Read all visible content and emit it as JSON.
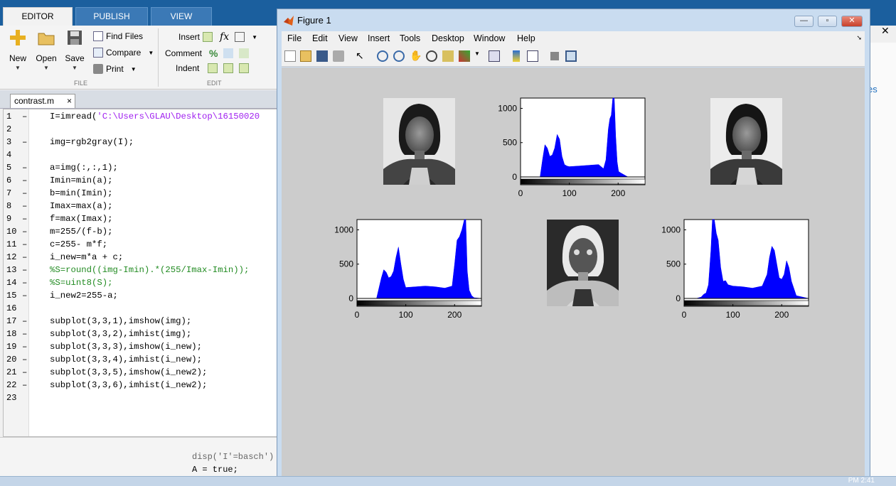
{
  "ribbon": {
    "tabs": [
      "EDITOR",
      "PUBLISH",
      "VIEW"
    ],
    "file": {
      "new": "New",
      "open": "Open",
      "save": "Save",
      "find_files": "Find Files",
      "compare": "Compare",
      "print": "Print",
      "section": "FILE"
    },
    "edit": {
      "insert": "Insert",
      "comment": "Comment",
      "indent": "Indent",
      "fx": "fx",
      "percent": "%",
      "section": "EDIT"
    }
  },
  "editor": {
    "file_tab": "contrast.m",
    "close": "×",
    "lines": [
      {
        "n": "1",
        "text": "I=imread(",
        "str": "'C:\\Users\\GLAU\\Desktop\\16150020",
        "rest": "",
        "type": "code"
      },
      {
        "n": "2",
        "text": "",
        "type": "code"
      },
      {
        "n": "3",
        "text": "img=rgb2gray(I);",
        "type": "code"
      },
      {
        "n": "4",
        "text": "",
        "type": "code"
      },
      {
        "n": "5",
        "text": "a=img(:,:,1);",
        "type": "code"
      },
      {
        "n": "6",
        "text": "Imin=min(a);",
        "type": "code"
      },
      {
        "n": "7",
        "text": "b=min(Imin);",
        "type": "code"
      },
      {
        "n": "8",
        "text": "Imax=max(a);",
        "type": "code"
      },
      {
        "n": "9",
        "text": "f=max(Imax);",
        "type": "code"
      },
      {
        "n": "10",
        "text": "m=255/(f-b);",
        "type": "code"
      },
      {
        "n": "11",
        "text": "c=255- m*f;",
        "type": "code"
      },
      {
        "n": "12",
        "text": "i_new=m*a + c;",
        "type": "code"
      },
      {
        "n": "13",
        "text": "%S=round((img-Imin).*(255/Imax-Imin));",
        "type": "comment"
      },
      {
        "n": "14",
        "text": "%S=uint8(S);",
        "type": "comment"
      },
      {
        "n": "15",
        "text": "i_new2=255-a;",
        "type": "code"
      },
      {
        "n": "16",
        "text": "",
        "type": "code"
      },
      {
        "n": "17",
        "text": "subplot(3,3,1),imshow(img);",
        "type": "code"
      },
      {
        "n": "18",
        "text": "subplot(3,3,2),imhist(img);",
        "type": "code"
      },
      {
        "n": "19",
        "text": "subplot(3,3,3),imshow(i_new);",
        "type": "code"
      },
      {
        "n": "20",
        "text": "subplot(3,3,4),imhist(i_new);",
        "type": "code"
      },
      {
        "n": "21",
        "text": "subplot(3,3,5),imshow(i_new2);",
        "type": "code"
      },
      {
        "n": "22",
        "text": "subplot(3,3,6),imhist(i_new2);",
        "type": "code"
      },
      {
        "n": "23",
        "text": "",
        "type": "code"
      }
    ],
    "dash": "–",
    "background_code": [
      "disp('I'=basch')",
      "A = true;"
    ]
  },
  "figure": {
    "title": "Figure 1",
    "menus": [
      "File",
      "Edit",
      "View",
      "Insert",
      "Tools",
      "Desktop",
      "Window",
      "Help"
    ],
    "win_buttons": {
      "min": "—",
      "max": "▫",
      "close": "✕"
    }
  },
  "right_panel": {
    "text": "es",
    "close": "✕"
  },
  "taskbar": {
    "clock": "PM 2:41"
  },
  "chart_data": [
    {
      "type": "bar",
      "subplot": "histogram of img",
      "xlim": [
        0,
        255
      ],
      "ylim": [
        0,
        1150
      ],
      "xticks": [
        "0",
        "100",
        "200"
      ],
      "yticks": [
        "0",
        "500",
        "1000"
      ],
      "x": [
        0,
        40,
        45,
        50,
        55,
        60,
        65,
        70,
        75,
        80,
        85,
        90,
        95,
        100,
        120,
        140,
        160,
        170,
        175,
        180,
        183,
        186,
        189,
        192,
        195,
        198,
        201,
        205,
        210,
        215,
        220,
        230,
        255
      ],
      "values": [
        0,
        0,
        250,
        470,
        420,
        300,
        320,
        420,
        620,
        550,
        300,
        180,
        160,
        150,
        160,
        170,
        180,
        120,
        250,
        700,
        850,
        900,
        1150,
        1150,
        600,
        220,
        80,
        60,
        40,
        20,
        0,
        0,
        0
      ],
      "color": "#0000ff"
    },
    {
      "type": "bar",
      "subplot": "histogram of i_new",
      "xlim": [
        0,
        255
      ],
      "ylim": [
        0,
        1150
      ],
      "xticks": [
        "0",
        "100",
        "200"
      ],
      "yticks": [
        "0",
        "500",
        "1000"
      ],
      "x": [
        0,
        35,
        40,
        45,
        50,
        55,
        60,
        65,
        70,
        75,
        80,
        85,
        90,
        95,
        100,
        120,
        140,
        160,
        180,
        195,
        200,
        205,
        210,
        215,
        220,
        223,
        226,
        230,
        235,
        240,
        255
      ],
      "values": [
        0,
        0,
        0,
        150,
        300,
        420,
        380,
        300,
        320,
        400,
        600,
        750,
        500,
        280,
        160,
        170,
        180,
        170,
        150,
        180,
        500,
        850,
        900,
        1000,
        1150,
        1150,
        400,
        120,
        40,
        10,
        0
      ],
      "color": "#0000ff"
    },
    {
      "type": "bar",
      "subplot": "histogram of i_new2",
      "xlim": [
        0,
        255
      ],
      "ylim": [
        0,
        1150
      ],
      "xticks": [
        "0",
        "100",
        "200"
      ],
      "yticks": [
        "0",
        "500",
        "1000"
      ],
      "x": [
        0,
        25,
        35,
        40,
        45,
        50,
        55,
        58,
        62,
        66,
        70,
        75,
        80,
        85,
        90,
        100,
        120,
        140,
        160,
        170,
        175,
        180,
        185,
        190,
        195,
        200,
        205,
        210,
        215,
        220,
        230,
        255
      ],
      "values": [
        0,
        0,
        20,
        60,
        80,
        200,
        700,
        1150,
        1150,
        950,
        850,
        450,
        250,
        260,
        200,
        180,
        170,
        150,
        180,
        350,
        600,
        760,
        700,
        500,
        300,
        280,
        350,
        550,
        450,
        250,
        40,
        0
      ],
      "color": "#0000ff"
    }
  ]
}
